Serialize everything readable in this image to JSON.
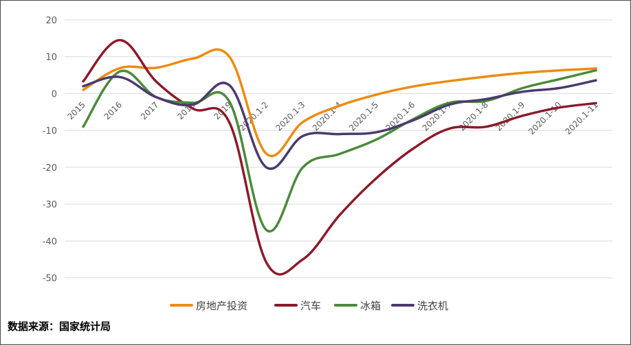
{
  "source_note": "数据来源：国家统计局",
  "chart_data": {
    "type": "line",
    "categories": [
      "2015",
      "2016",
      "2017",
      "2018",
      "2019",
      "2020.1-2",
      "2020.1-3",
      "2020.1-4",
      "2020.1-5",
      "2020.1-6",
      "2020.1-7",
      "2020.1-8",
      "2020.1-9",
      "2020.1-10",
      "2020.1-11"
    ],
    "ylim": [
      -50,
      20
    ],
    "yticks": [
      20,
      10,
      0,
      -10,
      -20,
      -30,
      -40,
      -50
    ],
    "grid": true,
    "legend_position": "bottom",
    "series": [
      {
        "name": "房地产投资",
        "color": "#ED8B12",
        "values": [
          1.0,
          6.9,
          7.0,
          9.5,
          9.9,
          -16.3,
          -7.7,
          -3.3,
          -0.3,
          1.9,
          3.4,
          4.6,
          5.6,
          6.3,
          6.8
        ]
      },
      {
        "name": "汽车",
        "color": "#8B1A2B",
        "values": [
          3.3,
          14.5,
          3.2,
          -4.1,
          -8.0,
          -45.8,
          -45.0,
          -33.0,
          -23.0,
          -15.0,
          -9.5,
          -9.0,
          -6.0,
          -3.8,
          -2.6
        ]
      },
      {
        "name": "冰箱",
        "color": "#4A8B3A",
        "values": [
          -9.0,
          6.0,
          -1.0,
          -2.5,
          -2.3,
          -37.0,
          -20.0,
          -16.4,
          -12.5,
          -7.0,
          -2.5,
          -2.0,
          1.5,
          3.9,
          6.3
        ]
      },
      {
        "name": "洗衣机",
        "color": "#4B3A6E",
        "values": [
          2.0,
          4.5,
          -1.0,
          -3.0,
          2.2,
          -20.0,
          -11.5,
          -11.0,
          -10.5,
          -7.3,
          -3.0,
          -1.5,
          0.5,
          1.5,
          3.6
        ]
      }
    ]
  }
}
